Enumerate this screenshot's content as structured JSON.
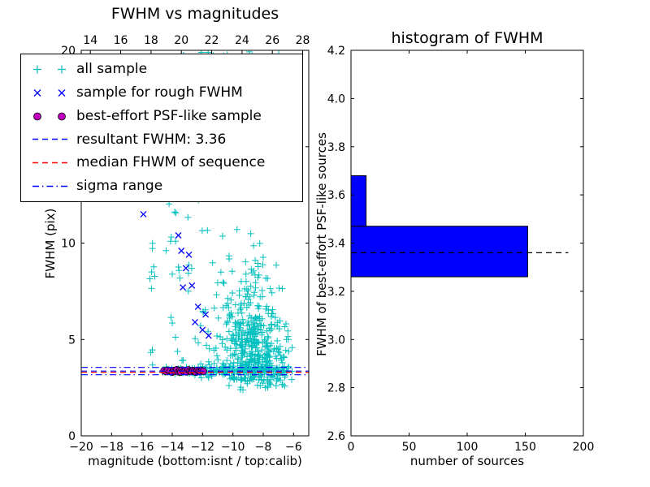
{
  "colors": {
    "background": "#ffffff",
    "cyan": "#00bfbf",
    "blue": "#0000ff",
    "magenta": "#bf00bf",
    "red": "#ff0000",
    "black": "#000000",
    "hist_bar": "#0000ff"
  },
  "legend": {
    "entries": [
      {
        "label": "all sample",
        "marker": "plus",
        "color": "#00bfbf"
      },
      {
        "label": "sample for rough FWHM",
        "marker": "x",
        "color": "#0000ff"
      },
      {
        "label": "best-effort PSF-like sample",
        "marker": "circle",
        "color": "#bf00bf"
      },
      {
        "label": "resultant FWHM: 3.36",
        "marker": "dashed-line",
        "color": "#0000ff"
      },
      {
        "label": "median FHWM of sequence",
        "marker": "dashed-line",
        "color": "#ff0000"
      },
      {
        "label": "sigma range",
        "marker": "dash-dot-line",
        "color": "#0000ff"
      }
    ]
  },
  "chart_data": [
    {
      "type": "scatter",
      "title": "FWHM vs magnitudes",
      "xlabel": "magnitude (bottom:isnt / top:calib)",
      "ylabel": "FWHM (pix)",
      "xlim": [
        -20,
        -5
      ],
      "ylim": [
        0,
        20
      ],
      "xticks_bottom": [
        -20,
        -18,
        -16,
        -14,
        -12,
        -10,
        -8,
        -6
      ],
      "xticks_top": [
        14,
        16,
        18,
        20,
        22,
        24,
        26,
        28
      ],
      "top_axis_offset": 33.4,
      "yticks": [
        0,
        5,
        10,
        15,
        20
      ],
      "series": [
        {
          "name": "all sample",
          "marker": "plus",
          "color_key": "cyan",
          "note": "approx 790 sources estimated from pixels: dense swarm mag -11..-6 with FWHM 3-20, stellar band at FWHM ~3.4 from mag -14.6 to -6.3, sparse sources mag -16..-10 up to FWHM 20",
          "distribution": {
            "seed": 42,
            "clusters": [
              {
                "n": 140,
                "mag": {
                  "type": "uniform",
                  "min": -12.3,
                  "max": -6.3
                },
                "fwhm": {
                  "type": "normal",
                  "mean": 3.42,
                  "sd": 0.18,
                  "min": 2.7,
                  "max": 4.3
                }
              },
              {
                "n": 30,
                "mag": {
                  "type": "uniform",
                  "min": -14.6,
                  "max": -12.3
                },
                "fwhm": {
                  "type": "normal",
                  "mean": 3.38,
                  "sd": 0.1
                }
              },
              {
                "n": 430,
                "mag": {
                  "type": "normal",
                  "mean": -8.7,
                  "sd": 1.05,
                  "min": -11.6,
                  "max": -6.1
                },
                "fwhm": {
                  "type": "halfnormal",
                  "base": 2.9,
                  "scale": 2.8
                }
              },
              {
                "n": 85,
                "mag": {
                  "type": "uniform",
                  "min": -14.6,
                  "max": -10.2
                },
                "fwhm": {
                  "type": "uniform",
                  "min": 3.8,
                  "max": 20
                }
              },
              {
                "n": 16,
                "mag": {
                  "type": "normal",
                  "mean": -15.3,
                  "sd": 0.12
                },
                "fwhm": {
                  "type": "uniform",
                  "min": 3.5,
                  "max": 19.5
                }
              },
              {
                "n": 55,
                "mag": {
                  "type": "normal",
                  "mean": -9.2,
                  "sd": 1.1,
                  "min": -11.8,
                  "max": -6.8
                },
                "fwhm": {
                  "type": "uniform",
                  "min": 14.5,
                  "max": 20
                }
              },
              {
                "n": 30,
                "mag": {
                  "type": "uniform",
                  "min": -10.3,
                  "max": -6.5
                },
                "fwhm": {
                  "type": "uniform",
                  "min": 2.35,
                  "max": 3.05
                }
              }
            ]
          }
        },
        {
          "name": "sample for rough FWHM",
          "marker": "x",
          "color_key": "blue",
          "points": [
            [
              -15.9,
              11.5
            ],
            [
              -13.6,
              10.4
            ],
            [
              -13.4,
              9.6
            ],
            [
              -12.9,
              9.4
            ],
            [
              -13.1,
              8.7
            ],
            [
              -13.3,
              7.7
            ],
            [
              -12.7,
              7.8
            ],
            [
              -12.3,
              6.7
            ],
            [
              -11.8,
              6.3
            ],
            [
              -12.5,
              5.9
            ],
            [
              -12.0,
              5.5
            ],
            [
              -11.6,
              5.2
            ]
          ]
        },
        {
          "name": "best-effort PSF-like sample",
          "marker": "circle",
          "color_key": "magenta",
          "points": [
            [
              -14.55,
              3.38
            ],
            [
              -14.4,
              3.33
            ],
            [
              -14.3,
              3.42
            ],
            [
              -14.15,
              3.36
            ],
            [
              -14.0,
              3.3
            ],
            [
              -13.9,
              3.4
            ],
            [
              -13.8,
              3.35
            ],
            [
              -13.7,
              3.44
            ],
            [
              -13.6,
              3.32
            ],
            [
              -13.5,
              3.38
            ],
            [
              -13.45,
              3.3
            ],
            [
              -13.35,
              3.42
            ],
            [
              -13.25,
              3.35
            ],
            [
              -13.15,
              3.39
            ],
            [
              -13.05,
              3.31
            ],
            [
              -12.95,
              3.43
            ],
            [
              -12.85,
              3.36
            ],
            [
              -12.75,
              3.33
            ],
            [
              -12.65,
              3.4
            ],
            [
              -12.55,
              3.35
            ],
            [
              -12.45,
              3.3
            ],
            [
              -12.35,
              3.41
            ],
            [
              -12.25,
              3.37
            ],
            [
              -12.15,
              3.33
            ],
            [
              -12.05,
              3.39
            ],
            [
              -11.95,
              3.35
            ]
          ]
        }
      ],
      "lines": [
        {
          "name": "resultant FWHM",
          "y": 3.36,
          "style": "dashed",
          "color_key": "blue"
        },
        {
          "name": "median FHWM of sequence",
          "y": 3.3,
          "style": "dashed",
          "color_key": "red"
        },
        {
          "name": "sigma range lower",
          "y": 3.17,
          "style": "dashdot",
          "color_key": "blue"
        },
        {
          "name": "sigma range upper",
          "y": 3.55,
          "style": "dashdot",
          "color_key": "blue"
        }
      ]
    },
    {
      "type": "bar",
      "orientation": "horizontal",
      "title": "histogram of FWHM",
      "xlabel": "number of sources",
      "ylabel": "FWHM of best-effort PSF-like sources",
      "xlim": [
        0,
        200
      ],
      "ylim": [
        2.6,
        4.2
      ],
      "xticks": [
        0,
        50,
        100,
        150,
        200
      ],
      "yticks": [
        "2.6",
        "2.8",
        "3.0",
        "3.2",
        "3.4",
        "3.6",
        "3.8",
        "4.0",
        "4.2"
      ],
      "bins": [
        {
          "from": 3.26,
          "to": 3.47,
          "count": 152
        },
        {
          "from": 3.47,
          "to": 3.68,
          "count": 13
        }
      ],
      "dashed_line": {
        "y": 3.36,
        "x_end": 187,
        "color_key": "black"
      }
    }
  ]
}
